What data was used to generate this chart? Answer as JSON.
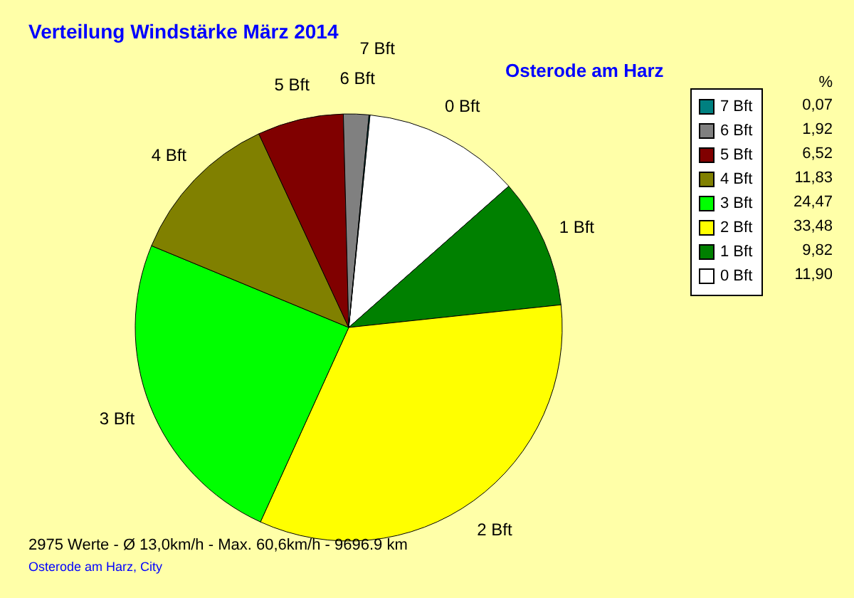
{
  "chart_data": {
    "type": "pie",
    "title": "Verteilung Windstärke  März 2014",
    "subtitle": "Osterode am Harz",
    "legend_title": "%",
    "categories": [
      "0 Bft",
      "1 Bft",
      "2 Bft",
      "3 Bft",
      "4 Bft",
      "5 Bft",
      "6 Bft",
      "7 Bft"
    ],
    "values": [
      11.9,
      9.82,
      33.48,
      24.47,
      11.83,
      6.52,
      1.92,
      0.07
    ],
    "value_labels": [
      "11,90",
      "9,82",
      "33,48",
      "24,47",
      "11,83",
      "6,52",
      "1,92",
      "0,07"
    ],
    "colors": [
      "#ffffff",
      "#008000",
      "#ffff00",
      "#00ff00",
      "#808000",
      "#800000",
      "#808080",
      "#008080"
    ],
    "legend": "right",
    "annotations": [
      "2975 Werte   -   Ø 13,0km/h  -  Max. 60,6km/h   -   9696.9 km",
      "Osterode am Harz, City"
    ]
  }
}
